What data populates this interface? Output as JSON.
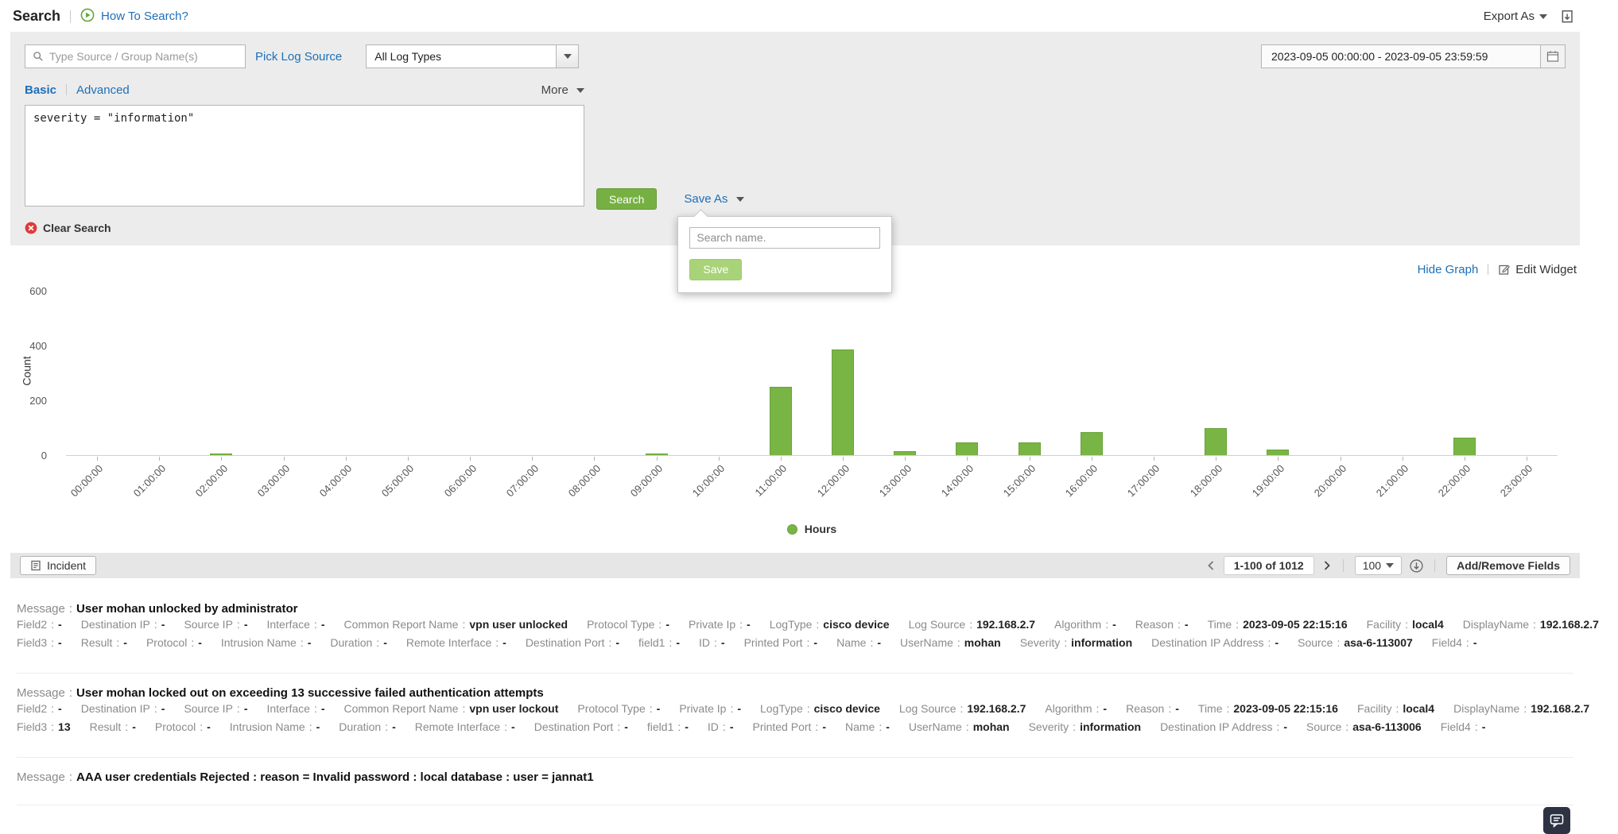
{
  "colors": {
    "accent_green": "#76b043",
    "pale_green": "#a9d379",
    "link_blue": "#1e6fb8",
    "error_red": "#e03a3a",
    "panel_gray": "#ececec",
    "toolbar_gray": "#e6e6e6"
  },
  "field_separator": ":",
  "header": {
    "title": "Search",
    "how_to_search": "How To Search?",
    "export_as": "Export As"
  },
  "search_panel": {
    "source_input_placeholder": "Type Source / Group Name(s)",
    "pick_log_source": "Pick Log Source",
    "log_type_value": "All Log Types",
    "date_range": "2023-09-05 00:00:00 - 2023-09-05 23:59:59",
    "tab_basic": "Basic",
    "tab_advanced": "Advanced",
    "more_label": "More",
    "query_value": "severity = \"information\"",
    "search_button": "Search",
    "save_as_label": "Save As",
    "clear_search": "Clear Search",
    "save_popup": {
      "name_placeholder": "Search name.",
      "save_button": "Save"
    }
  },
  "graph": {
    "hide_graph": "Hide Graph",
    "edit_widget": "Edit Widget"
  },
  "chart_data": {
    "type": "bar",
    "title": "",
    "xlabel": "",
    "ylabel": "Count",
    "categories": [
      "00:00:00",
      "01:00:00",
      "02:00:00",
      "03:00:00",
      "04:00:00",
      "05:00:00",
      "06:00:00",
      "07:00:00",
      "08:00:00",
      "09:00:00",
      "10:00:00",
      "11:00:00",
      "12:00:00",
      "13:00:00",
      "14:00:00",
      "15:00:00",
      "16:00:00",
      "17:00:00",
      "18:00:00",
      "19:00:00",
      "20:00:00",
      "21:00:00",
      "22:00:00",
      "23:00:00"
    ],
    "values": [
      0,
      0,
      5,
      0,
      0,
      0,
      0,
      0,
      0,
      5,
      0,
      250,
      385,
      15,
      45,
      45,
      85,
      0,
      100,
      20,
      0,
      0,
      65,
      0
    ],
    "ylim": [
      0,
      600
    ],
    "yticks": [
      0,
      200,
      400,
      600
    ],
    "legend": [
      "Hours"
    ],
    "legend_position": "bottom",
    "grid": false,
    "bar_color": "#79b544"
  },
  "results_toolbar": {
    "incident_button": "Incident",
    "pagination_text": "1-100 of 1012",
    "page_size": "100",
    "add_remove_fields": "Add/Remove Fields"
  },
  "entries": [
    {
      "message_label": "Message",
      "message": "User mohan unlocked by administrator",
      "rows": [
        [
          {
            "label": "Field2",
            "value": "-"
          },
          {
            "label": "Destination IP",
            "value": "-"
          },
          {
            "label": "Source IP",
            "value": "-"
          },
          {
            "label": "Interface",
            "value": "-"
          },
          {
            "label": "Common Report Name",
            "value": "vpn user unlocked"
          },
          {
            "label": "Protocol Type",
            "value": "-"
          },
          {
            "label": "Private Ip",
            "value": "-"
          },
          {
            "label": "LogType",
            "value": "cisco device"
          },
          {
            "label": "Log Source",
            "value": "192.168.2.7"
          },
          {
            "label": "Algorithm",
            "value": "-"
          },
          {
            "label": "Reason",
            "value": "-"
          },
          {
            "label": "Time",
            "value": "2023-09-05 22:15:16"
          },
          {
            "label": "Facility",
            "value": "local4"
          },
          {
            "label": "DisplayName",
            "value": "192.168.2.7"
          }
        ],
        [
          {
            "label": "Field3",
            "value": "-"
          },
          {
            "label": "Result",
            "value": "-"
          },
          {
            "label": "Protocol",
            "value": "-"
          },
          {
            "label": "Intrusion Name",
            "value": "-"
          },
          {
            "label": "Duration",
            "value": "-"
          },
          {
            "label": "Remote Interface",
            "value": "-"
          },
          {
            "label": "Destination Port",
            "value": "-"
          },
          {
            "label": "field1",
            "value": "-"
          },
          {
            "label": "ID",
            "value": "-"
          },
          {
            "label": "Printed Port",
            "value": "-"
          },
          {
            "label": "Name",
            "value": "-"
          },
          {
            "label": "UserName",
            "value": "mohan"
          },
          {
            "label": "Severity",
            "value": "information"
          },
          {
            "label": "Destination IP Address",
            "value": "-"
          },
          {
            "label": "Source",
            "value": "asa-6-113007"
          },
          {
            "label": "Field4",
            "value": "-"
          }
        ]
      ]
    },
    {
      "message_label": "Message",
      "message": "User mohan locked out on exceeding 13 successive failed authentication attempts",
      "rows": [
        [
          {
            "label": "Field2",
            "value": "-"
          },
          {
            "label": "Destination IP",
            "value": "-"
          },
          {
            "label": "Source IP",
            "value": "-"
          },
          {
            "label": "Interface",
            "value": "-"
          },
          {
            "label": "Common Report Name",
            "value": "vpn user lockout"
          },
          {
            "label": "Protocol Type",
            "value": "-"
          },
          {
            "label": "Private Ip",
            "value": "-"
          },
          {
            "label": "LogType",
            "value": "cisco device"
          },
          {
            "label": "Log Source",
            "value": "192.168.2.7"
          },
          {
            "label": "Algorithm",
            "value": "-"
          },
          {
            "label": "Reason",
            "value": "-"
          },
          {
            "label": "Time",
            "value": "2023-09-05 22:15:16"
          },
          {
            "label": "Facility",
            "value": "local4"
          },
          {
            "label": "DisplayName",
            "value": "192.168.2.7"
          }
        ],
        [
          {
            "label": "Field3",
            "value": "13"
          },
          {
            "label": "Result",
            "value": "-"
          },
          {
            "label": "Protocol",
            "value": "-"
          },
          {
            "label": "Intrusion Name",
            "value": "-"
          },
          {
            "label": "Duration",
            "value": "-"
          },
          {
            "label": "Remote Interface",
            "value": "-"
          },
          {
            "label": "Destination Port",
            "value": "-"
          },
          {
            "label": "field1",
            "value": "-"
          },
          {
            "label": "ID",
            "value": "-"
          },
          {
            "label": "Printed Port",
            "value": "-"
          },
          {
            "label": "Name",
            "value": "-"
          },
          {
            "label": "UserName",
            "value": "mohan"
          },
          {
            "label": "Severity",
            "value": "information"
          },
          {
            "label": "Destination IP Address",
            "value": "-"
          },
          {
            "label": "Source",
            "value": "asa-6-113006"
          },
          {
            "label": "Field4",
            "value": "-"
          }
        ]
      ]
    },
    {
      "message_label": "Message",
      "message": "AAA user credentials Rejected : reason = Invalid password : local database : user = jannat1",
      "rows": []
    }
  ]
}
